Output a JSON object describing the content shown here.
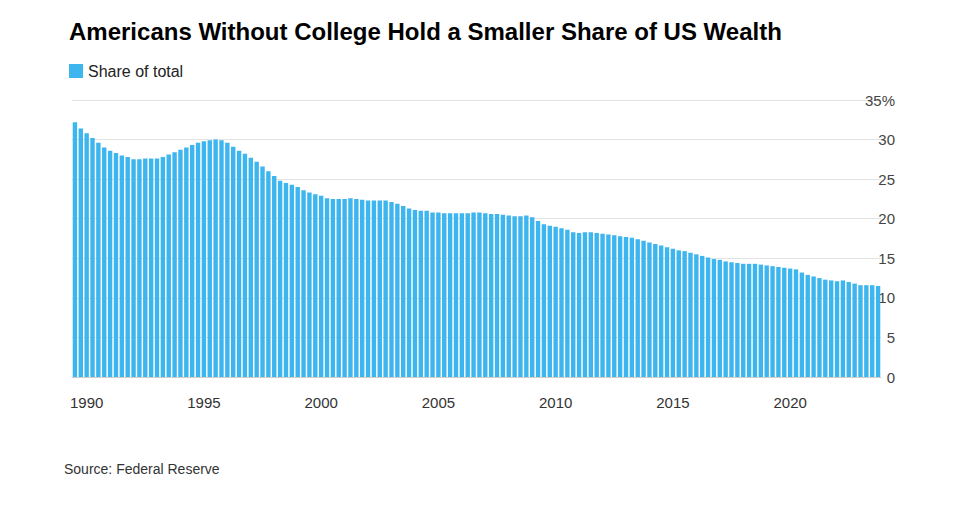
{
  "chart_data": {
    "type": "bar",
    "title": "Americans Without College Hold a Smaller Share of US Wealth",
    "source": "Source: Federal Reserve",
    "series": [
      {
        "name": "Share of total",
        "color": "#3db5ee",
        "values": [
          32.2,
          31.4,
          30.8,
          30.2,
          29.6,
          29.0,
          28.6,
          28.3,
          28.0,
          27.8,
          27.5,
          27.5,
          27.6,
          27.6,
          27.6,
          27.8,
          28.1,
          28.4,
          28.7,
          29.0,
          29.3,
          29.6,
          29.8,
          29.9,
          30.0,
          29.9,
          29.6,
          29.1,
          28.6,
          28.2,
          27.7,
          27.2,
          26.6,
          26.0,
          25.4,
          24.8,
          24.5,
          24.3,
          24.0,
          23.6,
          23.3,
          23.1,
          22.9,
          22.6,
          22.5,
          22.5,
          22.5,
          22.6,
          22.5,
          22.4,
          22.3,
          22.3,
          22.3,
          22.3,
          22.1,
          21.9,
          21.6,
          21.3,
          21.1,
          21.0,
          21.0,
          20.8,
          20.8,
          20.7,
          20.7,
          20.7,
          20.7,
          20.7,
          20.8,
          20.8,
          20.7,
          20.6,
          20.6,
          20.5,
          20.4,
          20.3,
          20.3,
          20.4,
          20.2,
          19.7,
          19.3,
          19.1,
          19.0,
          18.8,
          18.6,
          18.3,
          18.2,
          18.3,
          18.3,
          18.2,
          18.1,
          18.0,
          17.9,
          17.8,
          17.7,
          17.6,
          17.4,
          17.2,
          17.0,
          16.8,
          16.6,
          16.4,
          16.2,
          16.0,
          15.9,
          15.7,
          15.5,
          15.3,
          15.1,
          14.9,
          14.8,
          14.6,
          14.5,
          14.4,
          14.3,
          14.3,
          14.3,
          14.2,
          14.1,
          14.0,
          13.9,
          13.8,
          13.7,
          13.6,
          13.2,
          12.9,
          12.7,
          12.5,
          12.3,
          12.2,
          12.1,
          12.2,
          12.0,
          11.8,
          11.6,
          11.6,
          11.6,
          11.5
        ]
      }
    ],
    "categories": [
      null,
      null,
      "1990",
      null,
      null,
      null,
      null,
      null,
      null,
      null,
      null,
      null,
      null,
      null,
      null,
      null,
      null,
      null,
      null,
      null,
      null,
      null,
      "1995",
      null,
      null,
      null,
      null,
      null,
      null,
      null,
      null,
      null,
      null,
      null,
      null,
      null,
      null,
      null,
      null,
      null,
      null,
      null,
      "2000",
      null,
      null,
      null,
      null,
      null,
      null,
      null,
      null,
      null,
      null,
      null,
      null,
      null,
      null,
      null,
      null,
      null,
      null,
      null,
      "2005",
      null,
      null,
      null,
      null,
      null,
      null,
      null,
      null,
      null,
      null,
      null,
      null,
      null,
      null,
      null,
      null,
      null,
      null,
      null,
      "2010",
      null,
      null,
      null,
      null,
      null,
      null,
      null,
      null,
      null,
      null,
      null,
      null,
      null,
      null,
      null,
      null,
      null,
      null,
      null,
      "2015",
      null,
      null,
      null,
      null,
      null,
      null,
      null,
      null,
      null,
      null,
      null,
      null,
      null,
      null,
      null,
      null,
      null,
      null,
      null,
      "2020",
      null,
      null,
      null,
      null,
      null,
      null,
      null,
      null,
      null,
      null,
      null,
      null,
      null,
      null,
      null
    ],
    "ylim": [
      0,
      35
    ],
    "yticks": [
      0,
      5,
      10,
      15,
      20,
      25,
      30,
      {
        "value": 35,
        "label": "35%"
      }
    ],
    "grid": true,
    "legend": "top-left"
  }
}
